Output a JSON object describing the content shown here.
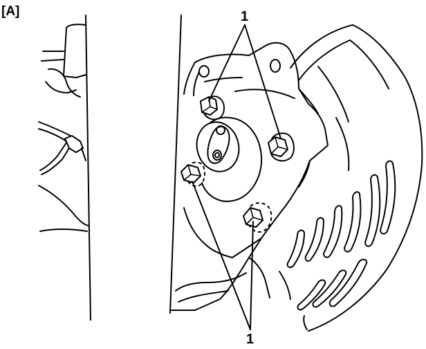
{
  "figure": {
    "panel_label": "[A]",
    "callout_top": "1",
    "callout_bottom": "1"
  }
}
